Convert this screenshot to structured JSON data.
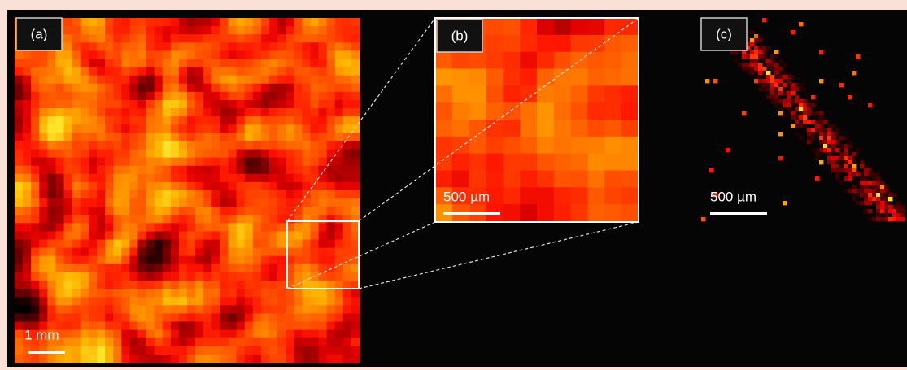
{
  "panels": [
    {
      "label": "(a)",
      "scale_bar": "1 mm"
    },
    {
      "label": "(b)",
      "scale_bar": "500 µm"
    },
    {
      "label": "(c)",
      "scale_bar": "500 µm"
    }
  ]
}
